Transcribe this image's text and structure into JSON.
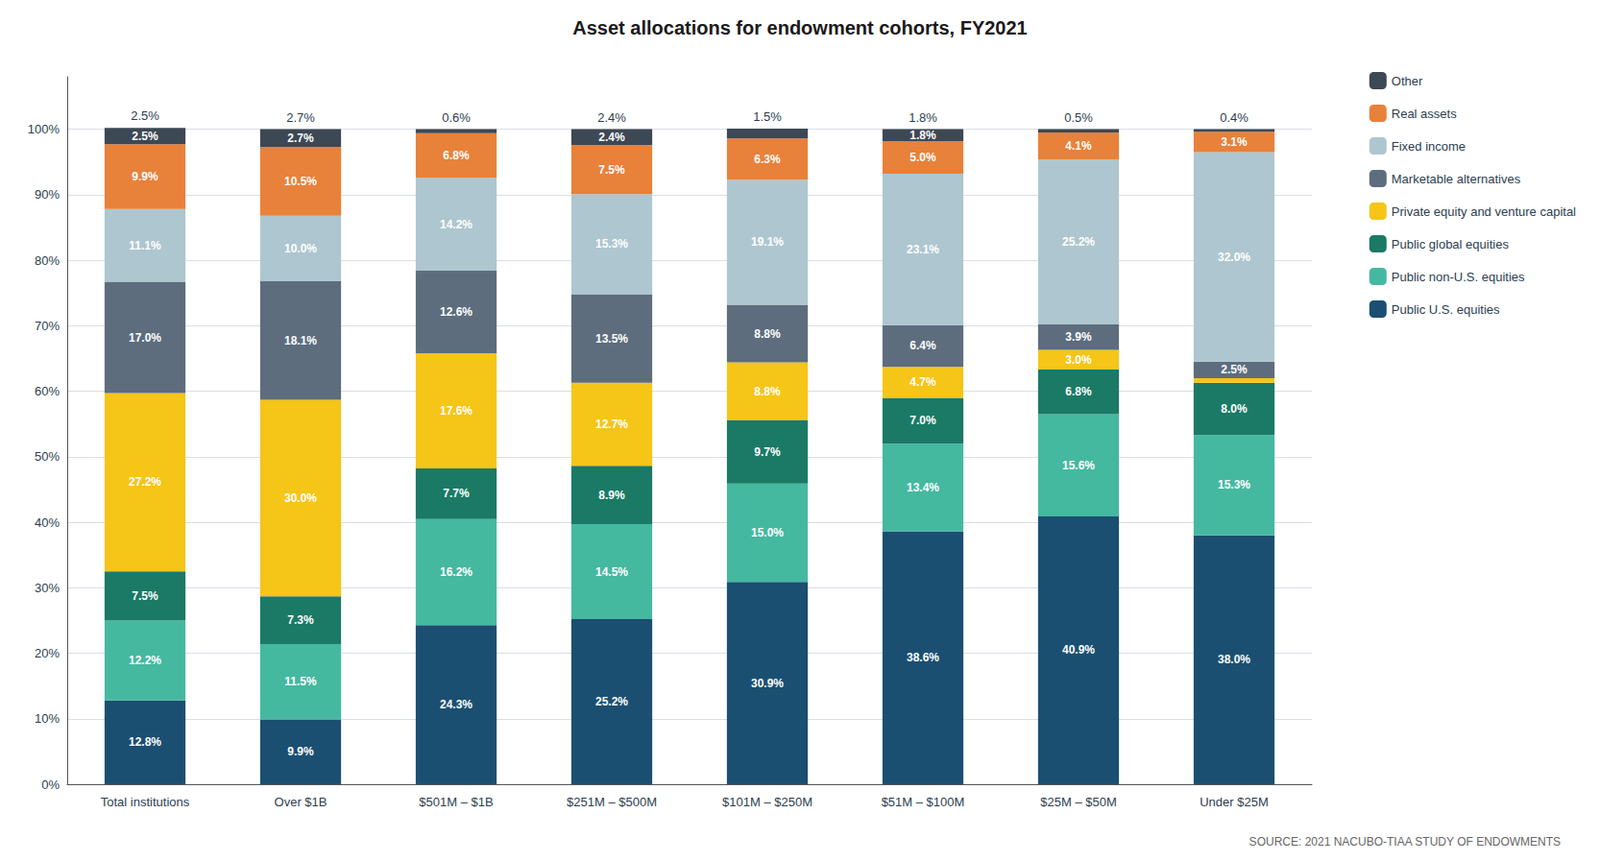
{
  "chart_data": {
    "type": "bar",
    "stacked": true,
    "title": "Asset allocations for endowment cohorts, FY2021",
    "source": "SOURCE: 2021 NACUBO-TIAA STUDY OF ENDOWMENTS",
    "categories": [
      "Total institutions",
      "Over $1B",
      "$501M – $1B",
      "$251M – $500M",
      "$101M – $250M",
      "$51M – $100M",
      "$25M – $50M",
      "Under $25M"
    ],
    "top_labels": [
      "2.5%",
      "2.7%",
      "0.6%",
      "2.4%",
      "1.5%",
      "1.8%",
      "0.5%",
      "0.4%"
    ],
    "series": [
      {
        "name": "Public U.S. equities",
        "color": "#1b4f72",
        "values": [
          12.8,
          9.9,
          24.3,
          25.2,
          30.9,
          38.6,
          40.9,
          38.0
        ],
        "value_labels": [
          "12.8%",
          "9.9%",
          "24.3%",
          "25.2%",
          "30.9%",
          "38.6%",
          "40.9%",
          "38.0%"
        ]
      },
      {
        "name": "Public non-U.S. equities",
        "color": "#45b8a0",
        "values": [
          12.2,
          11.5,
          16.2,
          14.5,
          15.0,
          13.4,
          15.6,
          15.3
        ],
        "value_labels": [
          "12.2%",
          "11.5%",
          "16.2%",
          "14.5%",
          "15.0%",
          "13.4%",
          "15.6%",
          "15.3%"
        ]
      },
      {
        "name": "Public global equities",
        "color": "#1a7a65",
        "values": [
          7.5,
          7.3,
          7.7,
          8.9,
          9.7,
          7.0,
          6.8,
          8.0
        ],
        "value_labels": [
          "7.5%",
          "7.3%",
          "7.7%",
          "8.9%",
          "9.7%",
          "7.0%",
          "6.8%",
          "8.0%"
        ]
      },
      {
        "name": "Private equity and venture capital",
        "color": "#f5c518",
        "values": [
          27.2,
          30.0,
          17.6,
          12.7,
          8.8,
          4.7,
          3.0,
          0.7
        ],
        "value_labels": [
          "27.2%",
          "30.0%",
          "17.6%",
          "12.7%",
          "8.8%",
          "4.7%",
          "3.0%",
          null
        ]
      },
      {
        "name": "Marketable alternatives",
        "color": "#5d6d7e",
        "values": [
          17.0,
          18.1,
          12.6,
          13.5,
          8.8,
          6.4,
          3.9,
          2.5
        ],
        "value_labels": [
          "17.0%",
          "18.1%",
          "12.6%",
          "13.5%",
          "8.8%",
          "6.4%",
          "3.9%",
          "2.5%"
        ]
      },
      {
        "name": "Fixed income",
        "color": "#aec6cf",
        "values": [
          11.1,
          10.0,
          14.2,
          15.3,
          19.1,
          23.1,
          25.2,
          32.0
        ],
        "value_labels": [
          "11.1%",
          "10.0%",
          "14.2%",
          "15.3%",
          "19.1%",
          "23.1%",
          "25.2%",
          "32.0%"
        ]
      },
      {
        "name": "Real assets",
        "color": "#e8813a",
        "values": [
          9.9,
          10.5,
          6.8,
          7.5,
          6.3,
          5.0,
          4.1,
          3.1
        ],
        "value_labels": [
          "9.9%",
          "10.5%",
          "6.8%",
          "7.5%",
          "6.3%",
          "5.0%",
          "4.1%",
          "3.1%"
        ]
      },
      {
        "name": "Other",
        "color": "#3d4855",
        "values": [
          2.5,
          2.7,
          0.6,
          2.4,
          1.5,
          1.8,
          0.5,
          0.4
        ],
        "value_labels": [
          "2.5%",
          "2.7%",
          null,
          "2.4%",
          null,
          "1.8%",
          null,
          null
        ]
      }
    ],
    "ylim": [
      0,
      108
    ],
    "yticks": [
      {
        "value": 0,
        "label": "0%"
      },
      {
        "value": 10,
        "label": "10%"
      },
      {
        "value": 20,
        "label": "20%"
      },
      {
        "value": 30,
        "label": "30%"
      },
      {
        "value": 40,
        "label": "40%"
      },
      {
        "value": 50,
        "label": "50%"
      },
      {
        "value": 60,
        "label": "60%"
      },
      {
        "value": 70,
        "label": "70%"
      },
      {
        "value": 80,
        "label": "80%"
      },
      {
        "value": 90,
        "label": "90%"
      },
      {
        "value": 100,
        "label": "100%"
      }
    ],
    "grid": true,
    "legend": "right",
    "data_labels": true
  }
}
